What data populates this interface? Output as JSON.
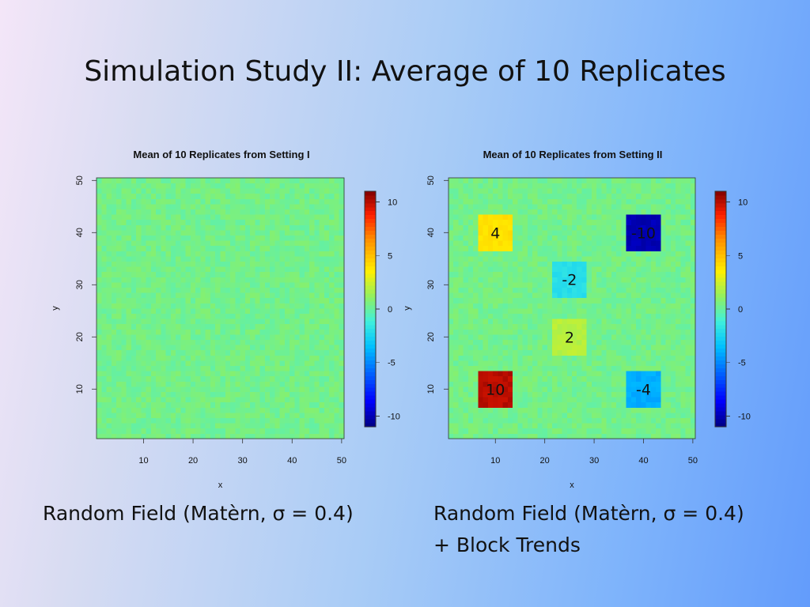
{
  "slide": {
    "title": "Simulation Study II: Average of 10 Replicates",
    "caption_left": "Random Field (Matèrn, σ = 0.4)",
    "caption_right_line1": "Random Field (Matèrn, σ = 0.4)",
    "caption_right_line2": "+ Block Trends"
  },
  "chart_data": [
    {
      "type": "heatmap",
      "title": "Mean of 10 Replicates from Setting I",
      "xlabel": "x",
      "ylabel": "y",
      "xlim": [
        0.5,
        50.5
      ],
      "ylim": [
        0.5,
        50.5
      ],
      "xticks": [
        10,
        20,
        30,
        40,
        50
      ],
      "yticks": [
        10,
        20,
        30,
        40,
        50
      ],
      "grid_size": [
        50,
        50
      ],
      "background_value": 0,
      "noise_sd": 0.4,
      "blocks": [],
      "colorbar": {
        "range": [
          -11,
          11
        ],
        "ticks": [
          10,
          5,
          0,
          -5,
          -10
        ]
      }
    },
    {
      "type": "heatmap",
      "title": "Mean of 10 Replicates from Setting II",
      "xlabel": "x",
      "ylabel": "y",
      "xlim": [
        0.5,
        50.5
      ],
      "ylim": [
        0.5,
        50.5
      ],
      "xticks": [
        10,
        20,
        30,
        40,
        50
      ],
      "yticks": [
        10,
        20,
        30,
        40,
        50
      ],
      "grid_size": [
        50,
        50
      ],
      "background_value": 0,
      "noise_sd": 0.4,
      "blocks": [
        {
          "label": "4",
          "value": 4,
          "x_range": [
            7,
            13
          ],
          "y_range": [
            37,
            43
          ]
        },
        {
          "label": "-10",
          "value": -10,
          "x_range": [
            37,
            43
          ],
          "y_range": [
            37,
            43
          ]
        },
        {
          "label": "-2",
          "value": -2,
          "x_range": [
            22,
            28
          ],
          "y_range": [
            28,
            34
          ]
        },
        {
          "label": "2",
          "value": 2,
          "x_range": [
            22,
            28
          ],
          "y_range": [
            17,
            23
          ]
        },
        {
          "label": "10",
          "value": 10,
          "x_range": [
            7,
            13
          ],
          "y_range": [
            7,
            13
          ]
        },
        {
          "label": "-4",
          "value": -4,
          "x_range": [
            37,
            43
          ],
          "y_range": [
            7,
            13
          ]
        }
      ],
      "colorbar": {
        "range": [
          -11,
          11
        ],
        "ticks": [
          10,
          5,
          0,
          -5,
          -10
        ]
      }
    }
  ]
}
